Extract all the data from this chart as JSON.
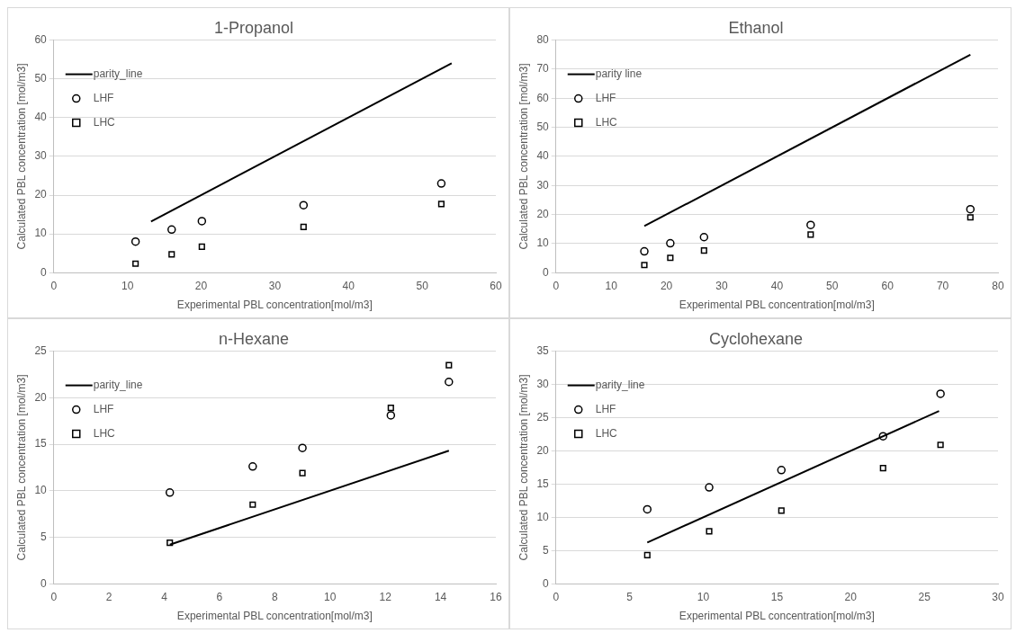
{
  "chart_data": [
    {
      "type": "scatter",
      "title": "1-Propanol",
      "xlabel": "Experimental PBL concentration[mol/m3]",
      "ylabel": "Calculated PBL concentration [mol/m3]",
      "xlim": [
        0,
        60
      ],
      "xticks": [
        0,
        10,
        20,
        30,
        40,
        50,
        60
      ],
      "ylim": [
        0,
        60
      ],
      "yticks": [
        0,
        10,
        20,
        30,
        40,
        50,
        60
      ],
      "grid": "y",
      "legend": "top left",
      "series": [
        {
          "name": "parity_line",
          "type": "line",
          "color": "#000000",
          "marker": "none",
          "line_style": "solid",
          "x": [
            13.2,
            54
          ],
          "values": [
            13.2,
            54
          ]
        },
        {
          "name": "LHF",
          "color": "#000000",
          "marker": "circle",
          "x": [
            11.1,
            16,
            20.1,
            33.9,
            52.6
          ],
          "values": [
            8,
            11.1,
            13.3,
            17.4,
            23
          ]
        },
        {
          "name": "LHC",
          "color": "#000000",
          "marker": "square",
          "x": [
            11.1,
            16,
            20.1,
            33.9,
            52.6
          ],
          "values": [
            2.3,
            4.7,
            6.7,
            11.8,
            17.7
          ]
        }
      ]
    },
    {
      "type": "scatter",
      "title": "Ethanol",
      "xlabel": "Experimental PBL concentration[mol/m3]",
      "ylabel": "Calculated PBL concentration [mol/m3]",
      "xlim": [
        0,
        80
      ],
      "xticks": [
        0,
        10,
        20,
        30,
        40,
        50,
        60,
        70,
        80
      ],
      "ylim": [
        0,
        80
      ],
      "yticks": [
        0,
        10,
        20,
        30,
        40,
        50,
        60,
        70,
        80
      ],
      "grid": "y",
      "legend": "top left",
      "series": [
        {
          "name": "parity line",
          "type": "line",
          "color": "#000000",
          "marker": "none",
          "line_style": "solid",
          "x": [
            16,
            75
          ],
          "values": [
            16,
            75
          ]
        },
        {
          "name": "LHF",
          "color": "#000000",
          "marker": "circle",
          "x": [
            16,
            20.7,
            26.8,
            46.1,
            75
          ],
          "values": [
            7.3,
            10.1,
            12.2,
            16.4,
            21.8
          ]
        },
        {
          "name": "LHC",
          "color": "#000000",
          "marker": "square",
          "x": [
            16,
            20.7,
            26.8,
            46.1,
            75
          ],
          "values": [
            2.6,
            5.1,
            7.6,
            13.1,
            19
          ]
        }
      ]
    },
    {
      "type": "scatter",
      "title": "n-Hexane",
      "xlabel": "Experimental PBL concentration[mol/m3]",
      "ylabel": "Calculated PBL concentration [mol/m3]",
      "xlim": [
        0,
        16
      ],
      "xticks": [
        0,
        2,
        4,
        6,
        8,
        10,
        12,
        14,
        16
      ],
      "ylim": [
        0,
        25
      ],
      "yticks": [
        0,
        5,
        10,
        15,
        20,
        25
      ],
      "grid": "y",
      "legend": "top left",
      "series": [
        {
          "name": "parity_line",
          "type": "line",
          "color": "#000000",
          "marker": "none",
          "line_style": "solid",
          "x": [
            4.2,
            14.3
          ],
          "values": [
            4.2,
            14.3
          ]
        },
        {
          "name": "LHF",
          "color": "#000000",
          "marker": "circle",
          "x": [
            4.2,
            7.2,
            9,
            12.2,
            14.3
          ],
          "values": [
            9.8,
            12.6,
            14.6,
            18.1,
            21.7
          ]
        },
        {
          "name": "LHC",
          "color": "#000000",
          "marker": "square",
          "x": [
            4.2,
            7.2,
            9,
            12.2,
            14.3
          ],
          "values": [
            4.4,
            8.5,
            11.9,
            18.9,
            23.5
          ]
        }
      ]
    },
    {
      "type": "scatter",
      "title": "Cyclohexane",
      "xlabel": "Experimental PBL concentration[mol/m3]",
      "ylabel": "Calculated PBL concentration [mol/m3]",
      "xlim": [
        0,
        30
      ],
      "xticks": [
        0,
        5,
        10,
        15,
        20,
        25,
        30
      ],
      "ylim": [
        0,
        35
      ],
      "yticks": [
        0,
        5,
        10,
        15,
        20,
        25,
        30,
        35
      ],
      "grid": "y",
      "legend": "top left",
      "series": [
        {
          "name": "parity_line",
          "type": "line",
          "color": "#000000",
          "marker": "none",
          "line_style": "solid",
          "x": [
            6.2,
            26
          ],
          "values": [
            6.2,
            26
          ]
        },
        {
          "name": "LHF",
          "color": "#000000",
          "marker": "circle",
          "x": [
            6.2,
            10.4,
            15.3,
            22.2,
            26.1
          ],
          "values": [
            11.2,
            14.5,
            17.1,
            22.2,
            28.6
          ]
        },
        {
          "name": "LHC",
          "color": "#000000",
          "marker": "square",
          "x": [
            6.2,
            10.4,
            15.3,
            22.2,
            26.1
          ],
          "values": [
            4.3,
            7.9,
            11,
            17.4,
            20.9
          ]
        }
      ]
    }
  ]
}
